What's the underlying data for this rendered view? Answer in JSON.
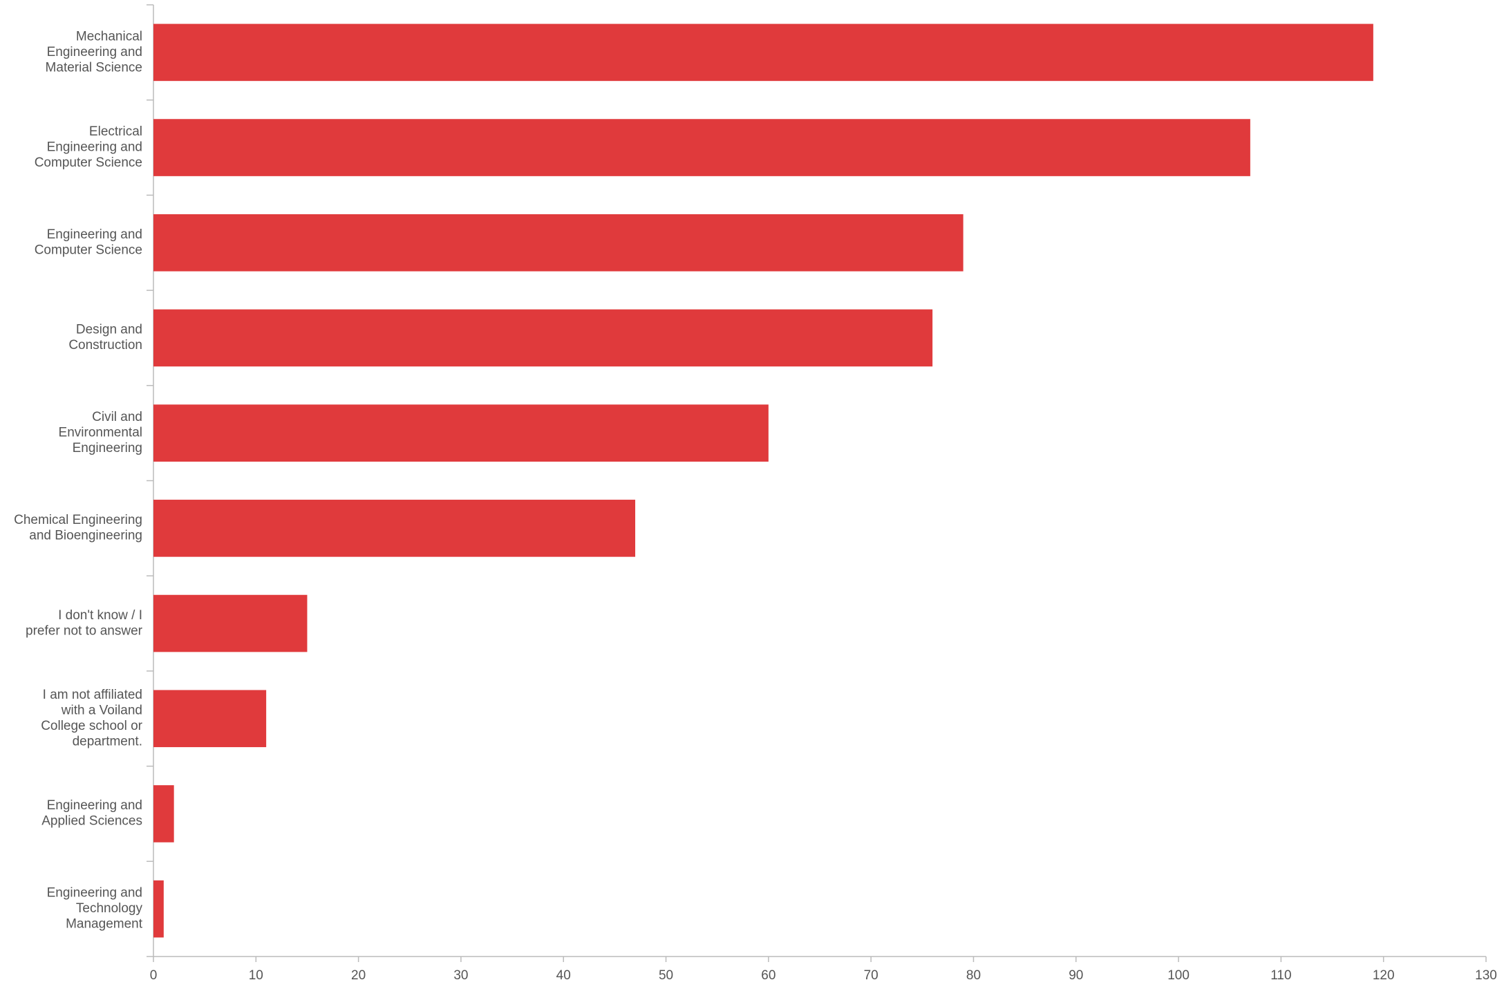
{
  "chart_data": {
    "type": "hbar",
    "categories": [
      "Mechanical Engineering and Material Science",
      "Electrical Engineering and Computer Science",
      "Engineering and Computer Science",
      "Design and Construction",
      "Civil and Environmental Engineering",
      "Chemical Engineering and Bioengineering",
      "I don't know / I prefer not to answer",
      "I am not affiliated with a Voiland College school or department.",
      "Engineering and Applied Sciences",
      "Engineering and Technology Management"
    ],
    "values": [
      119,
      107,
      79,
      76,
      60,
      47,
      15,
      11,
      2,
      1
    ],
    "color": "#e03a3c",
    "xlim": [
      0,
      130
    ],
    "xticks": [
      0,
      10,
      20,
      30,
      40,
      50,
      60,
      70,
      80,
      90,
      100,
      110,
      120,
      130
    ],
    "grid": false
  }
}
